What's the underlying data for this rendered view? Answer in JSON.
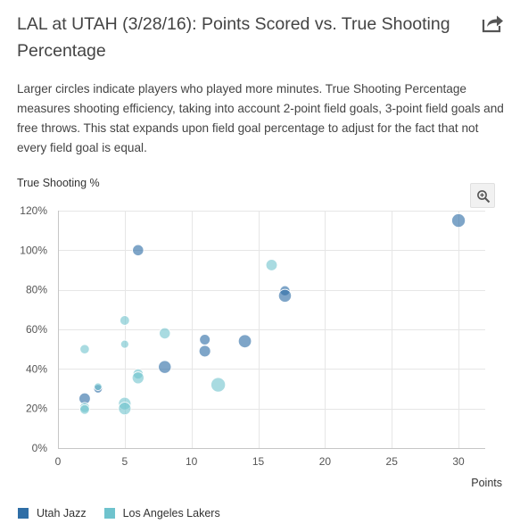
{
  "header": {
    "title": "LAL at UTAH (3/28/16): Points Scored vs. True Shooting Percentage",
    "description": "Larger circles indicate players who played more minutes. True Shooting Percentage measures shooting efficiency, taking into account 2-point field goals, 3-point field goals and free throws. This stat expands upon field goal percentage to adjust for the fact that not every field goal is equal.",
    "share_icon": "share-icon",
    "zoom_icon": "zoom-in-icon"
  },
  "chart_data": {
    "type": "scatter",
    "title": "LAL at UTAH (3/28/16): Points Scored vs. True Shooting Percentage",
    "xlabel": "Points",
    "ylabel": "True Shooting %",
    "xlim": [
      0,
      32
    ],
    "ylim": [
      0,
      1.2
    ],
    "x_ticks": [
      0,
      5,
      10,
      15,
      20,
      25,
      30
    ],
    "y_ticks": [
      0,
      0.2,
      0.4,
      0.6,
      0.8,
      1.0,
      1.2
    ],
    "x_tick_labels": [
      "0",
      "5",
      "10",
      "15",
      "20",
      "25",
      "30"
    ],
    "y_tick_labels": [
      "0%",
      "20%",
      "40%",
      "60%",
      "80%",
      "100%",
      "120%"
    ],
    "grid": true,
    "legend_position": "bottom-left",
    "series": [
      {
        "name": "Utah Jazz",
        "color": "#2f6ea6",
        "points": [
          {
            "x": 30,
            "y": 1.15,
            "minutes": 36
          },
          {
            "x": 6,
            "y": 1.0,
            "minutes": 26
          },
          {
            "x": 17,
            "y": 0.795,
            "minutes": 22
          },
          {
            "x": 17,
            "y": 0.77,
            "minutes": 33
          },
          {
            "x": 14,
            "y": 0.54,
            "minutes": 34
          },
          {
            "x": 11,
            "y": 0.548,
            "minutes": 24
          },
          {
            "x": 11,
            "y": 0.49,
            "minutes": 28
          },
          {
            "x": 8,
            "y": 0.41,
            "minutes": 33
          },
          {
            "x": 2,
            "y": 0.25,
            "minutes": 27
          },
          {
            "x": 3,
            "y": 0.3,
            "minutes": 16
          }
        ]
      },
      {
        "name": "Los Angeles Lakers",
        "color": "#6fc3cd",
        "points": [
          {
            "x": 16,
            "y": 0.925,
            "minutes": 27
          },
          {
            "x": 5,
            "y": 0.645,
            "minutes": 20
          },
          {
            "x": 8,
            "y": 0.58,
            "minutes": 26
          },
          {
            "x": 5,
            "y": 0.525,
            "minutes": 14
          },
          {
            "x": 2,
            "y": 0.5,
            "minutes": 19
          },
          {
            "x": 6,
            "y": 0.375,
            "minutes": 22
          },
          {
            "x": 6,
            "y": 0.355,
            "minutes": 29
          },
          {
            "x": 12,
            "y": 0.32,
            "minutes": 40
          },
          {
            "x": 3,
            "y": 0.31,
            "minutes": 12
          },
          {
            "x": 5,
            "y": 0.225,
            "minutes": 32
          },
          {
            "x": 5,
            "y": 0.2,
            "minutes": 32
          },
          {
            "x": 2,
            "y": 0.205,
            "minutes": 22
          },
          {
            "x": 2,
            "y": 0.195,
            "minutes": 20
          }
        ]
      }
    ]
  },
  "legend": {
    "items": [
      {
        "label": "Utah Jazz",
        "color": "#2f6ea6"
      },
      {
        "label": "Los Angeles Lakers",
        "color": "#6fc3cd"
      }
    ]
  }
}
